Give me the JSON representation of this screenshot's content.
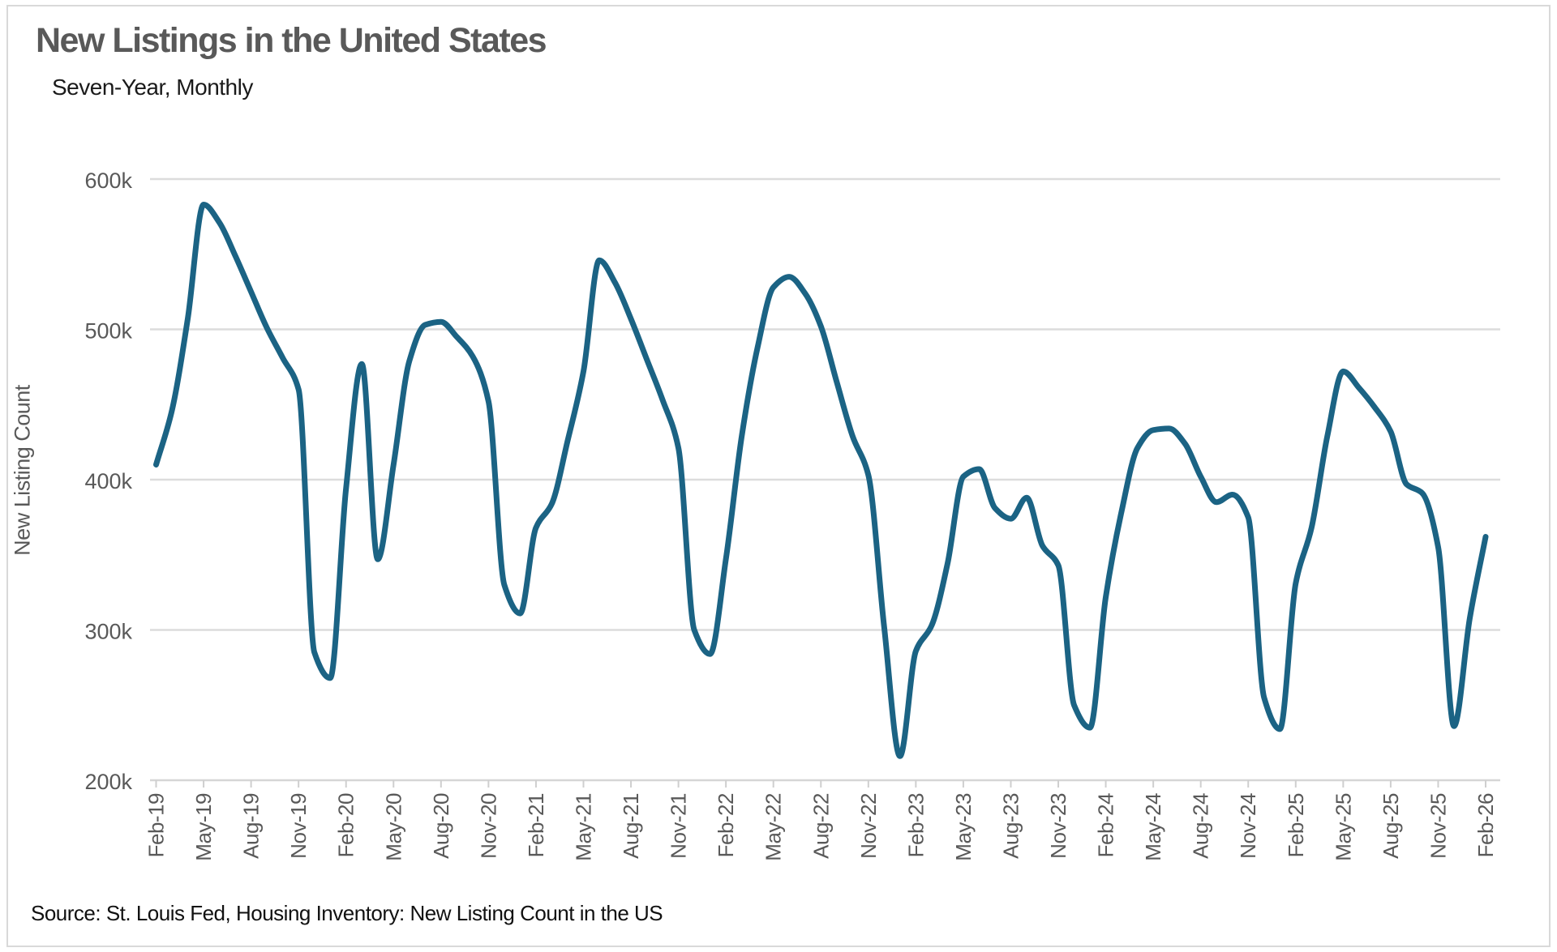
{
  "header": {
    "title": "New Listings in the United States",
    "subtitle": "Seven-Year, Monthly"
  },
  "footer": {
    "source_note": "Source: St. Louis Fed, Housing Inventory: New Listing Count in the US"
  },
  "chart_data": {
    "type": "line",
    "title": "New Listings in the United States",
    "subtitle": "Seven-Year, Monthly",
    "ylabel": "New Listing Count",
    "units": "listings, thousands (k)",
    "legend": "none",
    "grid": "horizontal-only",
    "line_color": "#1b6384",
    "grid_color": "#dcdcdc",
    "axis_text_color": "#595959",
    "ylim": [
      200,
      600
    ],
    "y_ticks": [
      {
        "value": 600,
        "label": "600k"
      },
      {
        "value": 500,
        "label": "500k"
      },
      {
        "value": 400,
        "label": "400k"
      },
      {
        "value": 300,
        "label": "300k"
      },
      {
        "value": 200,
        "label": "200k"
      }
    ],
    "x_tick_labels": [
      "Feb-19",
      "May-19",
      "Aug-19",
      "Nov-19",
      "Feb-20",
      "May-20",
      "Aug-20",
      "Nov-20",
      "Feb-21",
      "May-21",
      "Aug-21",
      "Nov-21",
      "Feb-22",
      "May-22",
      "Aug-22",
      "Nov-22",
      "Feb-23",
      "May-23",
      "Aug-23",
      "Nov-23",
      "Feb-24",
      "May-24",
      "Aug-24",
      "Nov-24",
      "Feb-25",
      "May-25",
      "Aug-25",
      "Nov-25",
      "Feb-26"
    ],
    "x": [
      "Feb-19",
      "Mar-19",
      "Apr-19",
      "May-19",
      "Jun-19",
      "Jul-19",
      "Aug-19",
      "Sep-19",
      "Oct-19",
      "Nov-19",
      "Dec-19",
      "Jan-20",
      "Feb-20",
      "Mar-20",
      "Apr-20",
      "May-20",
      "Jun-20",
      "Jul-20",
      "Aug-20",
      "Sep-20",
      "Oct-20",
      "Nov-20",
      "Dec-20",
      "Jan-21",
      "Feb-21",
      "Mar-21",
      "Apr-21",
      "May-21",
      "Jun-21",
      "Jul-21",
      "Aug-21",
      "Sep-21",
      "Oct-21",
      "Nov-21",
      "Dec-21",
      "Jan-22",
      "Feb-22",
      "Mar-22",
      "Apr-22",
      "May-22",
      "Jun-22",
      "Jul-22",
      "Aug-22",
      "Sep-22",
      "Oct-22",
      "Nov-22",
      "Dec-22",
      "Jan-23",
      "Feb-23",
      "Mar-23",
      "Apr-23",
      "May-23",
      "Jun-23",
      "Jul-23",
      "Aug-23",
      "Sep-23",
      "Oct-23",
      "Nov-23",
      "Dec-23",
      "Jan-24",
      "Feb-24",
      "Mar-24",
      "Apr-24",
      "May-24",
      "Jun-24",
      "Jul-24",
      "Aug-24",
      "Sep-24",
      "Oct-24",
      "Nov-24",
      "Dec-24",
      "Jan-25",
      "Feb-25",
      "Mar-25",
      "Apr-25",
      "May-25",
      "Jun-25",
      "Jul-25",
      "Aug-25",
      "Sep-25",
      "Oct-25",
      "Nov-25",
      "Dec-25",
      "Jan-26",
      "Feb-26"
    ],
    "values": [
      410,
      446,
      507,
      583,
      571,
      549,
      525,
      501,
      481,
      460,
      285,
      268,
      394,
      477,
      347,
      410,
      479,
      503,
      505,
      495,
      482,
      452,
      330,
      311,
      368,
      384,
      426,
      472,
      546,
      531,
      507,
      480,
      453,
      421,
      300,
      284,
      347,
      429,
      488,
      528,
      535,
      524,
      502,
      465,
      429,
      403,
      302,
      216,
      286,
      303,
      344,
      402,
      407,
      381,
      374,
      388,
      356,
      343,
      250,
      235,
      322,
      379,
      421,
      433,
      434,
      424,
      402,
      385,
      390,
      375,
      255,
      234,
      331,
      368,
      429,
      472,
      461,
      448,
      432,
      397,
      391,
      355,
      236,
      308,
      362
    ]
  }
}
